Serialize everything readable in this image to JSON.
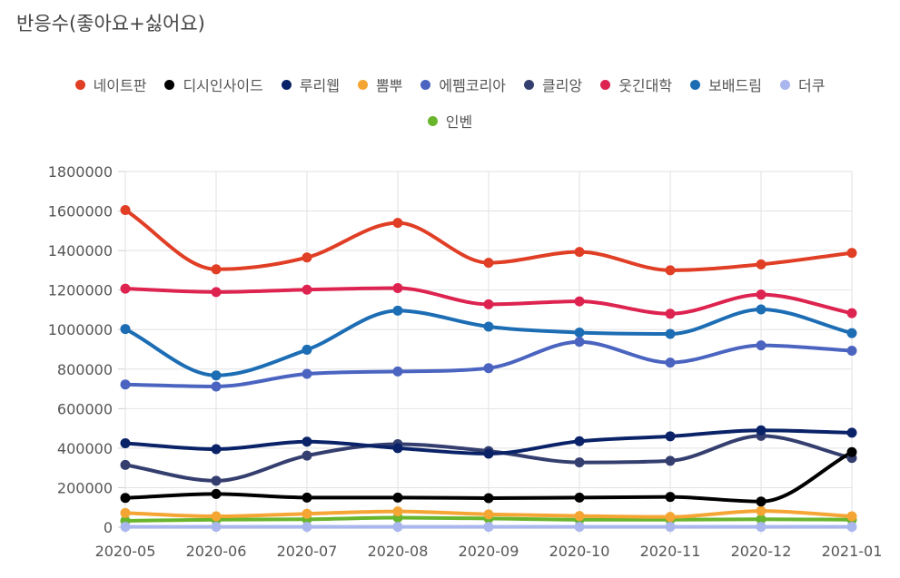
{
  "title": "반응수(좋아요+싫어요)",
  "chart_data": {
    "type": "line",
    "title": "반응수(좋아요+싫어요)",
    "xlabel": "",
    "ylabel": "",
    "legend_position": "top-center",
    "grid": true,
    "ylim": [
      0,
      1800000
    ],
    "yticks": [
      0,
      200000,
      400000,
      600000,
      800000,
      1000000,
      1200000,
      1400000,
      1600000,
      1800000
    ],
    "categories": [
      "2020-05",
      "2020-06",
      "2020-07",
      "2020-08",
      "2020-09",
      "2020-10",
      "2020-11",
      "2020-12",
      "2021-01"
    ],
    "series": [
      {
        "name": "네이트판",
        "color": "#e03e25",
        "values": [
          1605000,
          1305000,
          1365000,
          1540000,
          1338000,
          1393000,
          1300000,
          1330000,
          1388000
        ]
      },
      {
        "name": "디시인사이드",
        "color": "#000000",
        "values": [
          148000,
          168000,
          150000,
          150000,
          147000,
          150000,
          153000,
          130000,
          380000
        ]
      },
      {
        "name": "루리웹",
        "color": "#0a2368",
        "values": [
          425000,
          395000,
          433000,
          400000,
          372000,
          435000,
          460000,
          490000,
          478000
        ]
      },
      {
        "name": "뽐뿌",
        "color": "#f5a534",
        "values": [
          72000,
          55000,
          68000,
          80000,
          65000,
          57000,
          52000,
          82000,
          55000
        ]
      },
      {
        "name": "에펨코리아",
        "color": "#4a64c0",
        "values": [
          722000,
          712000,
          776000,
          788000,
          805000,
          938000,
          833000,
          920000,
          893000
        ]
      },
      {
        "name": "클리앙",
        "color": "#353f6f",
        "values": [
          315000,
          235000,
          362000,
          420000,
          385000,
          328000,
          336000,
          462000,
          350000
        ]
      },
      {
        "name": "웃긴대학",
        "color": "#dd2350",
        "values": [
          1207000,
          1190000,
          1202000,
          1210000,
          1128000,
          1143000,
          1080000,
          1177000,
          1083000
        ]
      },
      {
        "name": "보배드림",
        "color": "#1c6db4",
        "values": [
          1003000,
          768000,
          898000,
          1096000,
          1015000,
          985000,
          978000,
          1102000,
          982000
        ]
      },
      {
        "name": "더쿠",
        "color": "#a9b7ee",
        "values": [
          2000,
          2000,
          2000,
          2000,
          2000,
          2000,
          2000,
          2000,
          2000
        ]
      },
      {
        "name": "인벤",
        "color": "#69b52c",
        "values": [
          32000,
          38000,
          40000,
          48000,
          44000,
          38000,
          38000,
          40000,
          38000
        ]
      }
    ]
  }
}
